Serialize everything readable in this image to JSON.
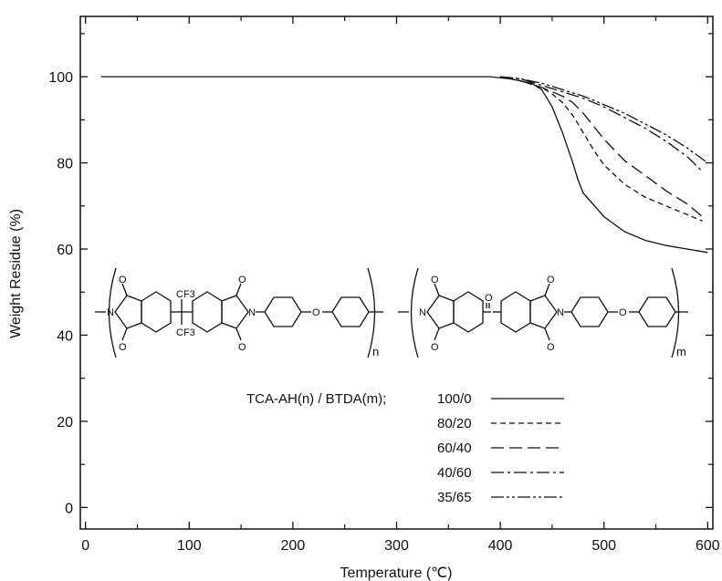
{
  "chart_data": {
    "type": "line",
    "title": "",
    "xlabel": "Temperature (℃)",
    "ylabel": "Weight Residue (%)",
    "xlim": [
      -5,
      605
    ],
    "ylim": [
      -5,
      114
    ],
    "xticks": [
      0,
      100,
      200,
      300,
      400,
      500,
      600
    ],
    "yticks": [
      0,
      20,
      40,
      60,
      80,
      100
    ],
    "grid": false,
    "legend_title": "TCA-AH(n) / BTDA(m);",
    "legend_position": "bottom-center",
    "series": [
      {
        "name": "100/0",
        "dash": "solid",
        "x": [
          15,
          100,
          200,
          300,
          390,
          410,
          430,
          440,
          450,
          460,
          470,
          475,
          480,
          500,
          520,
          540,
          560,
          580,
          600
        ],
        "y": [
          100,
          100,
          100,
          100,
          100,
          99.5,
          98.5,
          97,
          93,
          87,
          80,
          76,
          73,
          67.5,
          64,
          62,
          60.8,
          60,
          59.2
        ]
      },
      {
        "name": "80/20",
        "dash": "short",
        "x": [
          400,
          420,
          440,
          450,
          460,
          470,
          480,
          490,
          500,
          520,
          540,
          560,
          580,
          590,
          595
        ],
        "y": [
          100,
          99,
          97.5,
          96,
          94,
          91,
          87,
          83,
          79.5,
          75,
          72,
          70,
          68,
          67,
          66.5
        ]
      },
      {
        "name": "60/40",
        "dash": "long",
        "x": [
          400,
          420,
          440,
          460,
          470,
          480,
          490,
          500,
          520,
          540,
          560,
          580,
          590,
          595
        ],
        "y": [
          100,
          99,
          97.5,
          95.5,
          94,
          91.5,
          88.5,
          85.5,
          80.5,
          77,
          73.5,
          70.5,
          68.5,
          67.5
        ]
      },
      {
        "name": "40/60",
        "dash": "dashdot",
        "x": [
          400,
          420,
          440,
          460,
          480,
          500,
          520,
          540,
          560,
          580,
          595
        ],
        "y": [
          100,
          99.5,
          98,
          96.5,
          95,
          93,
          90.5,
          88,
          85,
          81.5,
          78
        ]
      },
      {
        "name": "35/65",
        "dash": "dashdotdot",
        "x": [
          400,
          420,
          440,
          460,
          480,
          500,
          520,
          540,
          560,
          580,
          600
        ],
        "y": [
          100,
          99.5,
          98.5,
          97,
          95.5,
          93.5,
          91.5,
          89,
          86.5,
          83.5,
          80
        ]
      }
    ],
    "structure": {
      "cf3_top": "CF3",
      "cf3_bottom": "CF3",
      "oxygen": "O",
      "nitrogen": "N",
      "subscript_n": "n",
      "subscript_m": "m"
    }
  }
}
